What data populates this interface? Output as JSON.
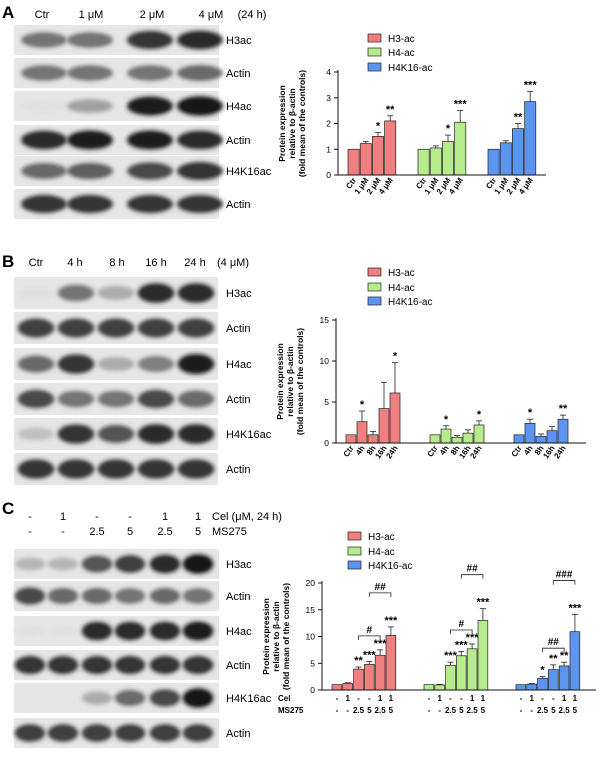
{
  "panels": [
    {
      "letter": "A",
      "lane_labels": [
        "Ctr",
        "1 μM",
        "2 μM",
        "4 μM",
        "(24 h)"
      ],
      "blot_labels": [
        "H3ac",
        "Actin",
        "H4ac",
        "Actin",
        "H4K16ac",
        "Actin"
      ],
      "chart_data": {
        "type": "bar",
        "ylabel": "Protein expression relative to β-actin (fold mean of the controls)",
        "ylim": [
          0,
          4
        ],
        "yticks": [
          0,
          1,
          2,
          3,
          4
        ],
        "categories": [
          "Ctr",
          "1 μM",
          "2 μM",
          "4 μM"
        ],
        "legend": [
          "H3-ac",
          "H4-ac",
          "H4K16-ac"
        ],
        "series": [
          {
            "name": "H3-ac",
            "values": [
              1.0,
              1.22,
              1.5,
              2.1
            ],
            "err": [
              0,
              0.08,
              0.15,
              0.2
            ],
            "sig": [
              "",
              "",
              "*",
              "**"
            ]
          },
          {
            "name": "H4-ac",
            "values": [
              1.0,
              1.05,
              1.3,
              2.05
            ],
            "err": [
              0,
              0.08,
              0.25,
              0.45
            ],
            "sig": [
              "",
              "",
              "*",
              "***"
            ]
          },
          {
            "name": "H4K16-ac",
            "values": [
              1.0,
              1.25,
              1.8,
              2.85
            ],
            "err": [
              0,
              0.08,
              0.2,
              0.4
            ],
            "sig": [
              "",
              "",
              "**",
              "***"
            ]
          }
        ]
      }
    },
    {
      "letter": "B",
      "lane_labels": [
        "Ctr",
        "4 h",
        "8 h",
        "16 h",
        "24 h",
        "(4 μM)"
      ],
      "blot_labels": [
        "H3ac",
        "Actin",
        "H4ac",
        "Actin",
        "H4K16ac",
        "Actin"
      ],
      "chart_data": {
        "type": "bar",
        "ylabel": "Protein expression relative to β-actin (fold mean of the controls)",
        "ylim": [
          0,
          15
        ],
        "yticks": [
          0,
          5,
          10,
          15
        ],
        "categories": [
          "Ctr",
          "4h",
          "8h",
          "16h",
          "24h"
        ],
        "legend": [
          "H3-ac",
          "H4-ac",
          "H4K16-ac"
        ],
        "series": [
          {
            "name": "H3-ac",
            "values": [
              1.0,
              2.6,
              1.0,
              4.2,
              6.1
            ],
            "err": [
              0,
              1.3,
              0.4,
              3.2,
              3.7
            ],
            "sig": [
              "",
              "*",
              "",
              "",
              "*"
            ]
          },
          {
            "name": "H4-ac",
            "values": [
              1.0,
              1.7,
              0.7,
              1.2,
              2.2
            ],
            "err": [
              0,
              0.4,
              0.2,
              0.4,
              0.5
            ],
            "sig": [
              "",
              "*",
              "",
              "",
              "*"
            ]
          },
          {
            "name": "H4K16-ac",
            "values": [
              1.0,
              2.4,
              0.8,
              1.5,
              2.9
            ],
            "err": [
              0,
              0.5,
              0.3,
              0.5,
              0.5
            ],
            "sig": [
              "",
              "*",
              "",
              "",
              "**"
            ]
          }
        ]
      }
    },
    {
      "letter": "C",
      "cel_row": [
        "-",
        "1",
        "-",
        "-",
        "1",
        "1"
      ],
      "ms_row": [
        "-",
        "-",
        "2.5",
        "5",
        "2.5",
        "5"
      ],
      "row_titles": [
        "Cel (μM, 24 h)",
        "MS275"
      ],
      "blot_labels": [
        "H3ac",
        "Actin",
        "H4ac",
        "Actin",
        "H4K16ac",
        "Actin"
      ],
      "chart_data": {
        "type": "bar",
        "ylabel": "Protein expression relative to β-actin (fold mean of the controls)",
        "ylim": [
          0,
          20
        ],
        "yticks": [
          0,
          5,
          10,
          15,
          20
        ],
        "cel_labels": [
          "-",
          "1",
          "-",
          "-",
          "1",
          "1"
        ],
        "ms_labels": [
          "-",
          "-",
          "2.5",
          "5",
          "2.5",
          "5"
        ],
        "axis_row_titles": [
          "Cel",
          "MS275"
        ],
        "legend": [
          "H3-ac",
          "H4-ac",
          "H4K16-ac"
        ],
        "series": [
          {
            "name": "H3-ac",
            "values": [
              1.0,
              1.2,
              3.9,
              4.8,
              6.5,
              10.2
            ],
            "err": [
              0,
              0.15,
              0.4,
              0.5,
              1.0,
              1.6
            ],
            "sig": [
              "",
              "",
              "**",
              "***",
              "***",
              "***"
            ],
            "brackets": [
              {
                "from": 2,
                "to": 4,
                "label": "#"
              },
              {
                "from": 3,
                "to": 5,
                "label": "##"
              }
            ]
          },
          {
            "name": "H4-ac",
            "values": [
              1.0,
              0.95,
              4.6,
              6.4,
              7.7,
              13.0
            ],
            "err": [
              0,
              0.1,
              0.6,
              0.8,
              0.9,
              2.2
            ],
            "sig": [
              "",
              "",
              "***",
              "***",
              "***",
              "***"
            ],
            "brackets": [
              {
                "from": 2,
                "to": 4,
                "label": "#"
              },
              {
                "from": 3,
                "to": 5,
                "label": "##"
              }
            ]
          },
          {
            "name": "H4K16-ac",
            "values": [
              1.0,
              1.1,
              2.2,
              3.8,
              4.5,
              10.9
            ],
            "err": [
              0,
              0.1,
              0.3,
              0.9,
              0.7,
              3.2
            ],
            "sig": [
              "",
              "",
              "*",
              "**",
              "**",
              "***"
            ],
            "brackets": [
              {
                "from": 2,
                "to": 4,
                "label": "##"
              },
              {
                "from": 3,
                "to": 5,
                "label": "###"
              }
            ]
          }
        ]
      }
    }
  ]
}
